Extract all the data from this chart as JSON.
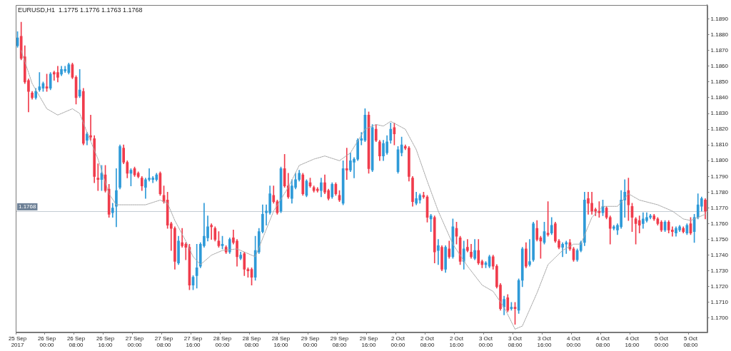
{
  "chart_data": {
    "type": "candlestick",
    "title": "EURUSD,H1  1.1775 1.1776 1.1763 1.1768",
    "categories": [
      "25 Sep 2017",
      null,
      null,
      null,
      null,
      null,
      null,
      null,
      "26 Sep 00:00",
      null,
      null,
      null,
      null,
      null,
      null,
      null,
      "26 Sep 08:00",
      null,
      null,
      null,
      null,
      null,
      null,
      null,
      "26 Sep 16:00",
      null,
      null,
      null,
      null,
      null,
      null,
      null,
      "27 Sep 00:00",
      null,
      null,
      null,
      null,
      null,
      null,
      null,
      "27 Sep 08:00",
      null,
      null,
      null,
      null,
      null,
      null,
      null,
      "27 Sep 16:00",
      null,
      null,
      null,
      null,
      null,
      null,
      null,
      "28 Sep 00:00",
      null,
      null,
      null,
      null,
      null,
      null,
      null,
      "28 Sep 08:00",
      null,
      null,
      null,
      null,
      null,
      null,
      null,
      "28 Sep 16:00",
      null,
      null,
      null,
      null,
      null,
      null,
      null,
      "29 Sep 00:00",
      null,
      null,
      null,
      null,
      null,
      null,
      null,
      "29 Sep 08:00",
      null,
      null,
      null,
      null,
      null,
      null,
      null,
      "29 Sep 16:00",
      null,
      null,
      null,
      null,
      null,
      null,
      null,
      "2 Oct 00:00",
      null,
      null,
      null,
      null,
      null,
      null,
      null,
      "2 Oct 08:00",
      null,
      null,
      null,
      null,
      null,
      null,
      null,
      "2 Oct 16:00",
      null,
      null,
      null,
      null,
      null,
      null,
      null,
      "3 Oct 00:00",
      null,
      null,
      null,
      null,
      null,
      null,
      null,
      "3 Oct 08:00",
      null,
      null,
      null,
      null,
      null,
      null,
      null,
      "3 Oct 16:00",
      null,
      null,
      null,
      null,
      null,
      null,
      null,
      "4 Oct 00:00",
      null,
      null,
      null,
      null,
      null,
      null,
      null,
      "4 Oct 08:00",
      null,
      null,
      null,
      null,
      null,
      null,
      null,
      "4 Oct 16:00",
      null,
      null,
      null,
      null,
      null,
      null,
      null,
      "5 Oct 00:00",
      null,
      null,
      null,
      null,
      null,
      null,
      null,
      "5 Oct 08:00",
      null,
      null,
      null,
      null
    ],
    "ohlc": [
      [
        1.1873,
        1.1882,
        1.1872,
        1.1878
      ],
      [
        1.1879,
        1.1888,
        1.1864,
        1.1865
      ],
      [
        1.1866,
        1.1873,
        1.1849,
        1.185
      ],
      [
        1.1851,
        1.1852,
        1.1831,
        1.1844
      ],
      [
        1.1843,
        1.1844,
        1.1839,
        1.184
      ],
      [
        1.184,
        1.1846,
        1.1839,
        1.1844
      ],
      [
        1.1845,
        1.1856,
        1.1844,
        1.1847
      ],
      [
        1.1846,
        1.185,
        1.1844,
        1.1849
      ],
      [
        1.1847,
        1.1855,
        1.1844,
        1.1846
      ],
      [
        1.1846,
        1.1856,
        1.1845,
        1.1855
      ],
      [
        1.1856,
        1.1857,
        1.1851,
        1.1855
      ],
      [
        1.1856,
        1.186,
        1.185,
        1.1853
      ],
      [
        1.1855,
        1.186,
        1.1854,
        1.1858
      ],
      [
        1.1857,
        1.186,
        1.1856,
        1.1858
      ],
      [
        1.1856,
        1.1862,
        1.1855,
        1.1861
      ],
      [
        1.1861,
        1.1862,
        1.1852,
        1.1853
      ],
      [
        1.1853,
        1.1854,
        1.1836,
        1.184
      ],
      [
        1.1841,
        1.1858,
        1.184,
        1.1845
      ],
      [
        1.1844,
        1.1846,
        1.181,
        1.1811
      ],
      [
        1.1813,
        1.1818,
        1.181,
        1.1817
      ],
      [
        1.1816,
        1.1829,
        1.1813,
        1.1815
      ],
      [
        1.1814,
        1.1816,
        1.1786,
        1.179
      ],
      [
        1.1789,
        1.1798,
        1.1781,
        1.1788
      ],
      [
        1.1788,
        1.1797,
        1.1781,
        1.1792
      ],
      [
        1.1791,
        1.1797,
        1.178,
        1.1781
      ],
      [
        1.1782,
        1.1785,
        1.1764,
        1.1766
      ],
      [
        1.1767,
        1.1773,
        1.1764,
        1.177
      ],
      [
        1.1771,
        1.1795,
        1.1758,
        1.1781
      ],
      [
        1.1783,
        1.181,
        1.1782,
        1.1809
      ],
      [
        1.1808,
        1.181,
        1.1798,
        1.1799
      ],
      [
        1.1799,
        1.18,
        1.1789,
        1.1792
      ],
      [
        1.1792,
        1.1795,
        1.1784,
        1.1794
      ],
      [
        1.1795,
        1.1796,
        1.179,
        1.1791
      ],
      [
        1.1792,
        1.1793,
        1.1789,
        1.179
      ],
      [
        1.1789,
        1.179,
        1.1781,
        1.1784
      ],
      [
        1.1783,
        1.1789,
        1.1776,
        1.1788
      ],
      [
        1.1788,
        1.1795,
        1.1787,
        1.1789
      ],
      [
        1.1788,
        1.179,
        1.1786,
        1.1789
      ],
      [
        1.1788,
        1.1792,
        1.1787,
        1.1791
      ],
      [
        1.1792,
        1.1793,
        1.1778,
        1.1779
      ],
      [
        1.1778,
        1.1784,
        1.1773,
        1.1774
      ],
      [
        1.1775,
        1.178,
        1.1757,
        1.1759
      ],
      [
        1.176,
        1.1761,
        1.1743,
        1.1757
      ],
      [
        1.1757,
        1.1758,
        1.1731,
        1.1736
      ],
      [
        1.1735,
        1.1752,
        1.1734,
        1.1749
      ],
      [
        1.1748,
        1.1757,
        1.1745,
        1.1746
      ],
      [
        1.1747,
        1.1748,
        1.1737,
        1.1745
      ],
      [
        1.1745,
        1.1747,
        1.1718,
        1.1721
      ],
      [
        1.1721,
        1.1727,
        1.1718,
        1.1726
      ],
      [
        1.1727,
        1.1747,
        1.1719,
        1.1732
      ],
      [
        1.1733,
        1.1748,
        1.1732,
        1.1747
      ],
      [
        1.1746,
        1.1773,
        1.1745,
        1.1752
      ],
      [
        1.1751,
        1.1765,
        1.1749,
        1.1758
      ],
      [
        1.1759,
        1.176,
        1.175,
        1.1758
      ],
      [
        1.1757,
        1.1758,
        1.1749,
        1.175
      ],
      [
        1.1749,
        1.1755,
        1.1745,
        1.1746
      ],
      [
        1.1746,
        1.1752,
        1.1744,
        1.1747
      ],
      [
        1.1745,
        1.1746,
        1.1741,
        1.1742
      ],
      [
        1.1742,
        1.1751,
        1.1741,
        1.175
      ],
      [
        1.1751,
        1.1756,
        1.1747,
        1.1748
      ],
      [
        1.1749,
        1.175,
        1.1733,
        1.1739
      ],
      [
        1.1738,
        1.1742,
        1.1737,
        1.174
      ],
      [
        1.1741,
        1.1742,
        1.1727,
        1.1731
      ],
      [
        1.1731,
        1.1732,
        1.1726,
        1.173
      ],
      [
        1.1731,
        1.1732,
        1.1721,
        1.1726
      ],
      [
        1.1726,
        1.1752,
        1.1724,
        1.1743
      ],
      [
        1.1742,
        1.1757,
        1.1741,
        1.1755
      ],
      [
        1.1755,
        1.1772,
        1.1754,
        1.1766
      ],
      [
        1.1767,
        1.1772,
        1.1759,
        1.1768
      ],
      [
        1.1767,
        1.1784,
        1.1766,
        1.1779
      ],
      [
        1.1778,
        1.1784,
        1.1773,
        1.1774
      ],
      [
        1.1774,
        1.1775,
        1.1766,
        1.1767
      ],
      [
        1.1768,
        1.1796,
        1.1767,
        1.1795
      ],
      [
        1.1795,
        1.1804,
        1.1783,
        1.1784
      ],
      [
        1.1784,
        1.1792,
        1.1776,
        1.1777
      ],
      [
        1.1776,
        1.1788,
        1.1773,
        1.1784
      ],
      [
        1.1783,
        1.1792,
        1.1782,
        1.1788
      ],
      [
        1.1788,
        1.1794,
        1.1787,
        1.1792
      ],
      [
        1.1791,
        1.1792,
        1.1778,
        1.1779
      ],
      [
        1.1778,
        1.1788,
        1.1777,
        1.1787
      ],
      [
        1.1786,
        1.1789,
        1.1783,
        1.1784
      ],
      [
        1.1783,
        1.1784,
        1.178,
        1.1781
      ],
      [
        1.1782,
        1.1783,
        1.178,
        1.1781
      ],
      [
        1.1781,
        1.1789,
        1.1777,
        1.1786
      ],
      [
        1.1786,
        1.1791,
        1.1779,
        1.178
      ],
      [
        1.1781,
        1.1782,
        1.1775,
        1.1776
      ],
      [
        1.1777,
        1.1786,
        1.1776,
        1.1785
      ],
      [
        1.1785,
        1.1786,
        1.1778,
        1.1779
      ],
      [
        1.1778,
        1.1781,
        1.1774,
        1.1775
      ],
      [
        1.1773,
        1.18,
        1.1772,
        1.1795
      ],
      [
        1.1795,
        1.1808,
        1.1788,
        1.1794
      ],
      [
        1.1794,
        1.1805,
        1.1793,
        1.18
      ],
      [
        1.1799,
        1.1802,
        1.1789,
        1.1801
      ],
      [
        1.1801,
        1.1814,
        1.18,
        1.1813
      ],
      [
        1.1813,
        1.1818,
        1.181,
        1.1814
      ],
      [
        1.1813,
        1.1833,
        1.1812,
        1.1829
      ],
      [
        1.1829,
        1.1831,
        1.1792,
        1.1795
      ],
      [
        1.1794,
        1.1823,
        1.1793,
        1.1821
      ],
      [
        1.182,
        1.1823,
        1.1812,
        1.1813
      ],
      [
        1.1812,
        1.1813,
        1.18,
        1.1803
      ],
      [
        1.1803,
        1.1813,
        1.18,
        1.1811
      ],
      [
        1.1805,
        1.1816,
        1.1804,
        1.1812
      ],
      [
        1.1813,
        1.1824,
        1.1811,
        1.182
      ],
      [
        1.1821,
        1.1824,
        1.181,
        1.1817
      ],
      [
        1.1793,
        1.1809,
        1.1792,
        1.1807
      ],
      [
        1.1805,
        1.1815,
        1.1803,
        1.181
      ],
      [
        1.1809,
        1.181,
        1.1807,
        1.1808
      ],
      [
        1.1808,
        1.1809,
        1.1787,
        1.179
      ],
      [
        1.1789,
        1.179,
        1.1771,
        1.1774
      ],
      [
        1.1773,
        1.178,
        1.1772,
        1.1776
      ],
      [
        1.1775,
        1.1779,
        1.1773,
        1.1778
      ],
      [
        1.1778,
        1.178,
        1.1776,
        1.1777
      ],
      [
        1.1777,
        1.1778,
        1.1761,
        1.1764
      ],
      [
        1.1763,
        1.1766,
        1.1755,
        1.1765
      ],
      [
        1.1764,
        1.1765,
        1.1735,
        1.1742
      ],
      [
        1.1743,
        1.175,
        1.1734,
        1.1746
      ],
      [
        1.1745,
        1.1746,
        1.173,
        1.1731
      ],
      [
        1.1731,
        1.1746,
        1.1729,
        1.1745
      ],
      [
        1.1744,
        1.1749,
        1.1738,
        1.1739
      ],
      [
        1.1739,
        1.1763,
        1.1738,
        1.1758
      ],
      [
        1.1757,
        1.1761,
        1.1747,
        1.1752
      ],
      [
        1.1751,
        1.1752,
        1.1734,
        1.1736
      ],
      [
        1.1736,
        1.1749,
        1.1731,
        1.1744
      ],
      [
        1.1745,
        1.175,
        1.1742,
        1.1743
      ],
      [
        1.1742,
        1.1747,
        1.1738,
        1.1739
      ],
      [
        1.1738,
        1.175,
        1.1737,
        1.1743
      ],
      [
        1.1743,
        1.175,
        1.1734,
        1.1735
      ],
      [
        1.1736,
        1.1737,
        1.1732,
        1.1734
      ],
      [
        1.1734,
        1.1736,
        1.1732,
        1.1735
      ],
      [
        1.1733,
        1.174,
        1.1732,
        1.1739
      ],
      [
        1.1739,
        1.174,
        1.1731,
        1.1733
      ],
      [
        1.1733,
        1.1734,
        1.1719,
        1.172
      ],
      [
        1.1721,
        1.1722,
        1.1705,
        1.1706
      ],
      [
        1.1707,
        1.1714,
        1.1702,
        1.1712
      ],
      [
        1.1713,
        1.1715,
        1.1704,
        1.1705
      ],
      [
        1.1706,
        1.171,
        1.1705,
        1.1707
      ],
      [
        1.1707,
        1.171,
        1.1696,
        1.1706
      ],
      [
        1.1705,
        1.1725,
        1.1703,
        1.1724
      ],
      [
        1.1724,
        1.1745,
        1.172,
        1.1744
      ],
      [
        1.1744,
        1.1748,
        1.1732,
        1.1733
      ],
      [
        1.1734,
        1.175,
        1.1733,
        1.1736
      ],
      [
        1.1737,
        1.1761,
        1.1736,
        1.176
      ],
      [
        1.1757,
        1.1762,
        1.1749,
        1.175
      ],
      [
        1.1751,
        1.1752,
        1.1738,
        1.1749
      ],
      [
        1.1748,
        1.1761,
        1.1747,
        1.1755
      ],
      [
        1.1754,
        1.1774,
        1.1752,
        1.1753
      ],
      [
        1.1754,
        1.1764,
        1.1753,
        1.1759
      ],
      [
        1.176,
        1.1761,
        1.1748,
        1.1749
      ],
      [
        1.1749,
        1.175,
        1.1744,
        1.1745
      ],
      [
        1.1745,
        1.1748,
        1.1739,
        1.1747
      ],
      [
        1.1747,
        1.1749,
        1.1741,
        1.1748
      ],
      [
        1.1748,
        1.175,
        1.1743,
        1.1744
      ],
      [
        1.1744,
        1.1745,
        1.1736,
        1.1737
      ],
      [
        1.1737,
        1.1744,
        1.1736,
        1.1743
      ],
      [
        1.1743,
        1.1749,
        1.1742,
        1.1748
      ],
      [
        1.1748,
        1.178,
        1.1746,
        1.1775
      ],
      [
        1.1776,
        1.178,
        1.1766,
        1.1773
      ],
      [
        1.1773,
        1.178,
        1.1766,
        1.1768
      ],
      [
        1.1769,
        1.177,
        1.1765,
        1.1768
      ],
      [
        1.1768,
        1.1774,
        1.1764,
        1.1767
      ],
      [
        1.1767,
        1.1775,
        1.1765,
        1.1771
      ],
      [
        1.177,
        1.1771,
        1.1763,
        1.1764
      ],
      [
        1.1764,
        1.1765,
        1.1747,
        1.1757
      ],
      [
        1.1757,
        1.1759,
        1.1756,
        1.1758
      ],
      [
        1.1756,
        1.176,
        1.1753,
        1.1759
      ],
      [
        1.1758,
        1.1781,
        1.1757,
        1.1775
      ],
      [
        1.1775,
        1.1788,
        1.1764,
        1.178
      ],
      [
        1.1781,
        1.1789,
        1.1762,
        1.1772
      ],
      [
        1.1771,
        1.1773,
        1.1755,
        1.1764
      ],
      [
        1.1763,
        1.1764,
        1.1747,
        1.176
      ],
      [
        1.1762,
        1.1765,
        1.1754,
        1.1759
      ],
      [
        1.176,
        1.1767,
        1.1757,
        1.1763
      ],
      [
        1.1762,
        1.1767,
        1.1761,
        1.1764
      ],
      [
        1.1764,
        1.1766,
        1.1763,
        1.1765
      ],
      [
        1.1765,
        1.1766,
        1.1762,
        1.1763
      ],
      [
        1.1763,
        1.1764,
        1.1759,
        1.176
      ],
      [
        1.1761,
        1.1762,
        1.1755,
        1.1756
      ],
      [
        1.1756,
        1.1762,
        1.1755,
        1.1761
      ],
      [
        1.1761,
        1.1762,
        1.1754,
        1.1756
      ],
      [
        1.1756,
        1.1758,
        1.1752,
        1.1755
      ],
      [
        1.1754,
        1.1758,
        1.1752,
        1.1757
      ],
      [
        1.1756,
        1.1759,
        1.1755,
        1.1758
      ],
      [
        1.1757,
        1.1758,
        1.1754,
        1.1755
      ],
      [
        1.1754,
        1.176,
        1.1753,
        1.1759
      ],
      [
        1.176,
        1.1764,
        1.1753,
        1.1754
      ],
      [
        1.1755,
        1.1766,
        1.1748,
        1.1764
      ],
      [
        1.1764,
        1.1779,
        1.1763,
        1.1772
      ],
      [
        1.1771,
        1.1777,
        1.1768,
        1.1776
      ],
      [
        1.1775,
        1.1776,
        1.1763,
        1.1768
      ]
    ],
    "series": [
      {
        "type": "line",
        "color": "#a8a8a8",
        "line_style": "dotted",
        "values": [
          null,
          1.187,
          null,
          null,
          1.1849,
          null,
          null,
          null,
          1.1833,
          null,
          null,
          1.1829,
          null,
          null,
          null,
          1.1833,
          null,
          1.183,
          null,
          1.1818,
          null,
          null,
          1.1801,
          null,
          null,
          1.1779,
          null,
          1.1772,
          null,
          1.1772,
          null,
          null,
          null,
          1.1772,
          null,
          1.1772,
          null,
          null,
          null,
          1.1775,
          null,
          1.1773,
          null,
          1.1762,
          null,
          null,
          1.1749,
          null,
          1.1739,
          null,
          1.1734,
          null,
          null,
          1.174,
          null,
          null,
          1.1743,
          null,
          null,
          null,
          1.1744,
          null,
          1.1742,
          null,
          null,
          1.1739,
          null,
          null,
          null,
          null,
          1.1768,
          null,
          null,
          null,
          1.1783,
          null,
          null,
          1.1797,
          null,
          null,
          null,
          1.1801,
          null,
          null,
          1.1803,
          null,
          null,
          null,
          1.18,
          null,
          null,
          1.1805,
          null,
          null,
          null,
          1.182,
          null,
          null,
          1.1823,
          null,
          1.1822,
          null,
          1.1825,
          null,
          null,
          null,
          1.182,
          null,
          null,
          1.1807,
          null,
          null,
          1.1787,
          null,
          null,
          1.1768,
          null,
          null,
          null,
          1.1747,
          null,
          null,
          null,
          1.1733,
          null,
          null,
          null,
          1.1721,
          null,
          null,
          1.1717,
          null,
          null,
          1.1707,
          null,
          null,
          1.1693,
          null,
          1.1695,
          null,
          null,
          null,
          1.1716,
          null,
          null,
          1.1734,
          null,
          null,
          null,
          1.1743,
          null,
          null,
          1.1747,
          null,
          1.1747,
          null,
          null,
          1.1764,
          null,
          null,
          1.1771,
          null,
          null,
          null,
          1.1771,
          null,
          null,
          1.1779,
          null,
          null,
          1.1775,
          null,
          null,
          null,
          null,
          1.1772,
          null,
          null,
          null,
          1.1768,
          null,
          null,
          1.1763,
          null,
          1.1762,
          null,
          null,
          null,
          1.1766
        ]
      }
    ],
    "ylim": [
      1.1691,
      1.1899
    ],
    "yticks": [
      {
        "value": 1.17,
        "label": "1.1700"
      },
      {
        "value": 1.171,
        "label": "1.1710"
      },
      {
        "value": 1.172,
        "label": "1.1720"
      },
      {
        "value": 1.173,
        "label": "1.1730"
      },
      {
        "value": 1.174,
        "label": "1.1740"
      },
      {
        "value": 1.175,
        "label": "1.1750"
      },
      {
        "value": 1.176,
        "label": "1.1760"
      },
      {
        "value": 1.177,
        "label": "1.1770"
      },
      {
        "value": 1.178,
        "label": "1.1780"
      },
      {
        "value": 1.179,
        "label": "1.1790"
      },
      {
        "value": 1.18,
        "label": "1.1800"
      },
      {
        "value": 1.181,
        "label": "1.1810"
      },
      {
        "value": 1.182,
        "label": "1.1820"
      },
      {
        "value": 1.183,
        "label": "1.1830"
      },
      {
        "value": 1.184,
        "label": "1.1840"
      },
      {
        "value": 1.185,
        "label": "1.1850"
      },
      {
        "value": 1.186,
        "label": "1.1860"
      },
      {
        "value": 1.187,
        "label": "1.1870"
      },
      {
        "value": 1.188,
        "label": "1.1880"
      },
      {
        "value": 1.189,
        "label": "1.1890"
      }
    ],
    "ref_lines": [
      {
        "axis": "y",
        "value": 1.1768,
        "label": "1.1768",
        "color": "#c4ccd4"
      }
    ]
  }
}
